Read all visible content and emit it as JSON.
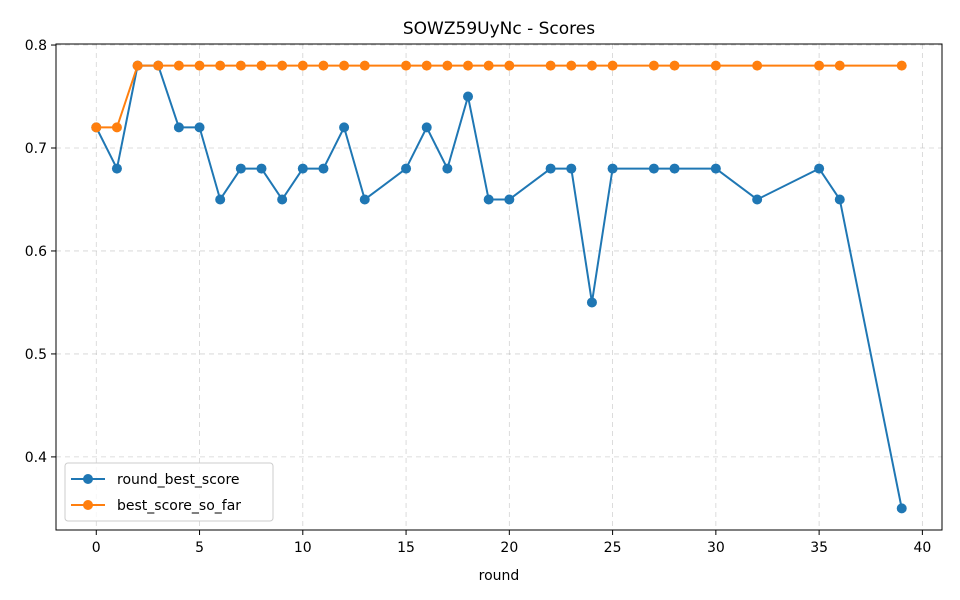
{
  "chart_data": {
    "type": "line",
    "title": "SOWZ59UyNc - Scores",
    "xlabel": "round",
    "ylabel": "",
    "xlim": [
      -1.95,
      40.95
    ],
    "ylim": [
      0.329,
      0.801
    ],
    "xticks": [
      0,
      5,
      10,
      15,
      20,
      25,
      30,
      35,
      40
    ],
    "yticks": [
      0.4,
      0.5,
      0.6,
      0.7,
      0.8
    ],
    "xtick_labels": [
      "0",
      "5",
      "10",
      "15",
      "20",
      "25",
      "30",
      "35",
      "40"
    ],
    "ytick_labels": [
      "0.4",
      "0.5",
      "0.6",
      "0.7",
      "0.8"
    ],
    "grid": true,
    "legend_position": "lower-left",
    "series": [
      {
        "name": "round_best_score",
        "color": "#1f77b4",
        "x": [
          0,
          1,
          2,
          3,
          4,
          5,
          6,
          7,
          8,
          9,
          10,
          11,
          12,
          13,
          15,
          16,
          17,
          18,
          19,
          20,
          22,
          23,
          24,
          25,
          27,
          28,
          30,
          32,
          35,
          36,
          39
        ],
        "y": [
          0.72,
          0.68,
          0.78,
          0.78,
          0.72,
          0.72,
          0.65,
          0.68,
          0.68,
          0.65,
          0.68,
          0.68,
          0.72,
          0.65,
          0.68,
          0.72,
          0.68,
          0.75,
          0.65,
          0.65,
          0.68,
          0.68,
          0.55,
          0.68,
          0.68,
          0.68,
          0.68,
          0.65,
          0.68,
          0.65,
          0.35
        ]
      },
      {
        "name": "best_score_so_far",
        "color": "#ff7f0e",
        "x": [
          0,
          1,
          2,
          3,
          4,
          5,
          6,
          7,
          8,
          9,
          10,
          11,
          12,
          13,
          15,
          16,
          17,
          18,
          19,
          20,
          22,
          23,
          24,
          25,
          27,
          28,
          30,
          32,
          35,
          36,
          39
        ],
        "y": [
          0.72,
          0.72,
          0.78,
          0.78,
          0.78,
          0.78,
          0.78,
          0.78,
          0.78,
          0.78,
          0.78,
          0.78,
          0.78,
          0.78,
          0.78,
          0.78,
          0.78,
          0.78,
          0.78,
          0.78,
          0.78,
          0.78,
          0.78,
          0.78,
          0.78,
          0.78,
          0.78,
          0.78,
          0.78,
          0.78,
          0.78
        ]
      }
    ]
  }
}
